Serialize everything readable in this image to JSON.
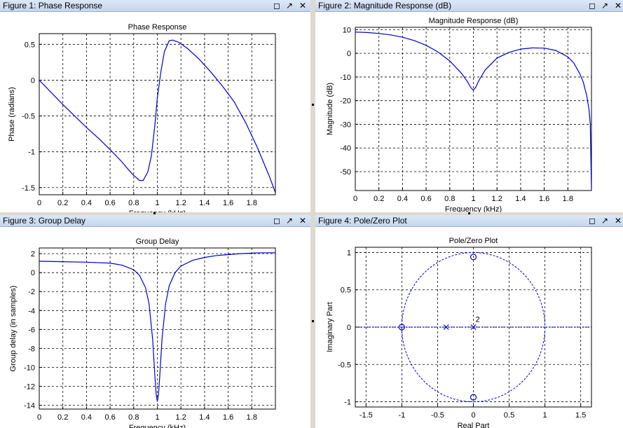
{
  "panels": [
    {
      "title": "Figure 1: Phase Response"
    },
    {
      "title": "Figure 2: Magnitude Response (dB)"
    },
    {
      "title": "Figure 3: Group Delay"
    },
    {
      "title": "Figure 4: Pole/Zero Plot"
    }
  ],
  "icons": {
    "undock": "undock-icon",
    "dock": "dock-arrow-icon",
    "close": "close-icon"
  },
  "colors": {
    "line": "#0000cc",
    "grid": "#000000",
    "titlebar": "#c4d6ee"
  },
  "chart_data": [
    {
      "type": "line",
      "title": "Phase Response",
      "xlabel": "Frequency (kHz)",
      "ylabel": "Phase (radians)",
      "xlim": [
        0,
        2.0
      ],
      "ylim": [
        -1.6,
        0.65
      ],
      "xticks": [
        0,
        0.2,
        0.4,
        0.6,
        0.8,
        1,
        1.2,
        1.4,
        1.6,
        1.8
      ],
      "xtick_labels": [
        "0",
        "0.2",
        "0.4",
        "0.6",
        "0.8",
        "1",
        "1.2",
        "1.4",
        "1.6",
        "1.8"
      ],
      "yticks": [
        -1.5,
        -1,
        -0.5,
        0,
        0.5
      ],
      "ytick_labels": [
        "-1.5",
        "-1",
        "-0.5",
        "0",
        "0.5"
      ],
      "grid": true,
      "series": [
        {
          "x": [
            0,
            0.1,
            0.2,
            0.3,
            0.4,
            0.5,
            0.6,
            0.7,
            0.75,
            0.8,
            0.85,
            0.88,
            0.92,
            0.95,
            0.98,
            1.0,
            1.03,
            1.06,
            1.1,
            1.13,
            1.18,
            1.25,
            1.35,
            1.45,
            1.55,
            1.65,
            1.75,
            1.85,
            1.95,
            2.0
          ],
          "y": [
            0,
            -0.17,
            -0.34,
            -0.5,
            -0.66,
            -0.81,
            -0.97,
            -1.14,
            -1.24,
            -1.33,
            -1.4,
            -1.4,
            -1.28,
            -1.05,
            -0.62,
            -0.25,
            0.12,
            0.4,
            0.55,
            0.56,
            0.53,
            0.45,
            0.3,
            0.12,
            -0.08,
            -0.3,
            -0.6,
            -0.95,
            -1.35,
            -1.57
          ]
        }
      ]
    },
    {
      "type": "line",
      "title": "Magnitude Response (dB)",
      "xlabel": "Frequency (kHz)",
      "ylabel": "Magnitude (dB)",
      "xlim": [
        0,
        2.0
      ],
      "ylim": [
        -58,
        11
      ],
      "xticks": [
        0,
        0.2,
        0.4,
        0.6,
        0.8,
        1,
        1.2,
        1.4,
        1.6,
        1.8
      ],
      "xtick_labels": [
        "0",
        "0.2",
        "0.4",
        "0.6",
        "0.8",
        "1",
        "1.2",
        "1.4",
        "1.6",
        "1.8"
      ],
      "yticks": [
        -50,
        -40,
        -30,
        -20,
        -10,
        0,
        10
      ],
      "ytick_labels": [
        "-50",
        "-40",
        "-30",
        "-20",
        "-10",
        "0",
        "10"
      ],
      "grid": true,
      "series": [
        {
          "x": [
            0,
            0.1,
            0.2,
            0.3,
            0.4,
            0.5,
            0.6,
            0.7,
            0.8,
            0.9,
            0.95,
            0.98,
            1.0,
            1.02,
            1.05,
            1.1,
            1.2,
            1.3,
            1.4,
            1.5,
            1.6,
            1.7,
            1.8,
            1.85,
            1.9,
            1.93,
            1.96,
            1.98,
            1.99,
            2.0
          ],
          "y": [
            9.0,
            8.8,
            8.4,
            7.8,
            6.8,
            5.4,
            3.4,
            0.6,
            -3.2,
            -8.5,
            -12.0,
            -14.6,
            -15.6,
            -14.3,
            -11.2,
            -7.0,
            -2.0,
            0.4,
            1.8,
            2.3,
            2.2,
            1.2,
            -1.5,
            -4.0,
            -8.5,
            -12.0,
            -18.0,
            -24.0,
            -30.0,
            -58.0
          ]
        }
      ]
    },
    {
      "type": "line",
      "title": "Group Delay",
      "xlabel": "Frequency (kHz)",
      "ylabel": "Group delay (in samples)",
      "xlim": [
        0,
        2.0
      ],
      "ylim": [
        -14.4,
        2.6
      ],
      "xticks": [
        0,
        0.2,
        0.4,
        0.6,
        0.8,
        1,
        1.2,
        1.4,
        1.6,
        1.8
      ],
      "xtick_labels": [
        "0",
        "0.2",
        "0.4",
        "0.6",
        "0.8",
        "1",
        "1.2",
        "1.4",
        "1.6",
        "1.8"
      ],
      "yticks": [
        -14,
        -12,
        -10,
        -8,
        -6,
        -4,
        -2,
        0,
        2
      ],
      "ytick_labels": [
        "-14",
        "-12",
        "-10",
        "-8",
        "-6",
        "-4",
        "-2",
        "0",
        "2"
      ],
      "grid": true,
      "series": [
        {
          "x": [
            0,
            0.2,
            0.4,
            0.6,
            0.7,
            0.8,
            0.85,
            0.9,
            0.93,
            0.96,
            0.98,
            0.99,
            1.0,
            1.01,
            1.02,
            1.04,
            1.07,
            1.1,
            1.15,
            1.2,
            1.3,
            1.4,
            1.5,
            1.6,
            1.7,
            1.8,
            1.9,
            2.0
          ],
          "y": [
            1.2,
            1.15,
            1.1,
            1.0,
            0.8,
            0.3,
            -0.3,
            -1.6,
            -3.3,
            -7.0,
            -11.0,
            -12.8,
            -13.6,
            -12.8,
            -11.0,
            -7.0,
            -3.3,
            -1.4,
            0.0,
            0.7,
            1.3,
            1.6,
            1.8,
            1.9,
            2.0,
            2.05,
            2.1,
            2.1
          ]
        }
      ]
    },
    {
      "type": "scatter",
      "title": "Pole/Zero Plot",
      "xlabel": "Real Part",
      "ylabel": "Imaginary Part",
      "xlim": [
        -1.65,
        1.65
      ],
      "ylim": [
        -1.07,
        1.07
      ],
      "xticks": [
        -1.5,
        -1,
        -0.5,
        0,
        0.5,
        1,
        1.5
      ],
      "xtick_labels": [
        "-1.5",
        "-1",
        "-0.5",
        "0",
        "0.5",
        "1",
        "1.5"
      ],
      "yticks": [
        -1,
        -0.5,
        0,
        0.5,
        1
      ],
      "ytick_labels": [
        "-1",
        "-0.5",
        "0",
        "0.5",
        "1"
      ],
      "grid": true,
      "unit_circle": true,
      "zeros": [
        {
          "x": 0,
          "y": 0.94
        },
        {
          "x": 0,
          "y": -0.94
        },
        {
          "x": -1,
          "y": 0
        }
      ],
      "poles": [
        {
          "x": -0.38,
          "y": 0
        },
        {
          "x": 0,
          "y": 0
        }
      ],
      "annotations": [
        {
          "text": "2",
          "x": 0.03,
          "y": 0.07
        }
      ]
    }
  ]
}
